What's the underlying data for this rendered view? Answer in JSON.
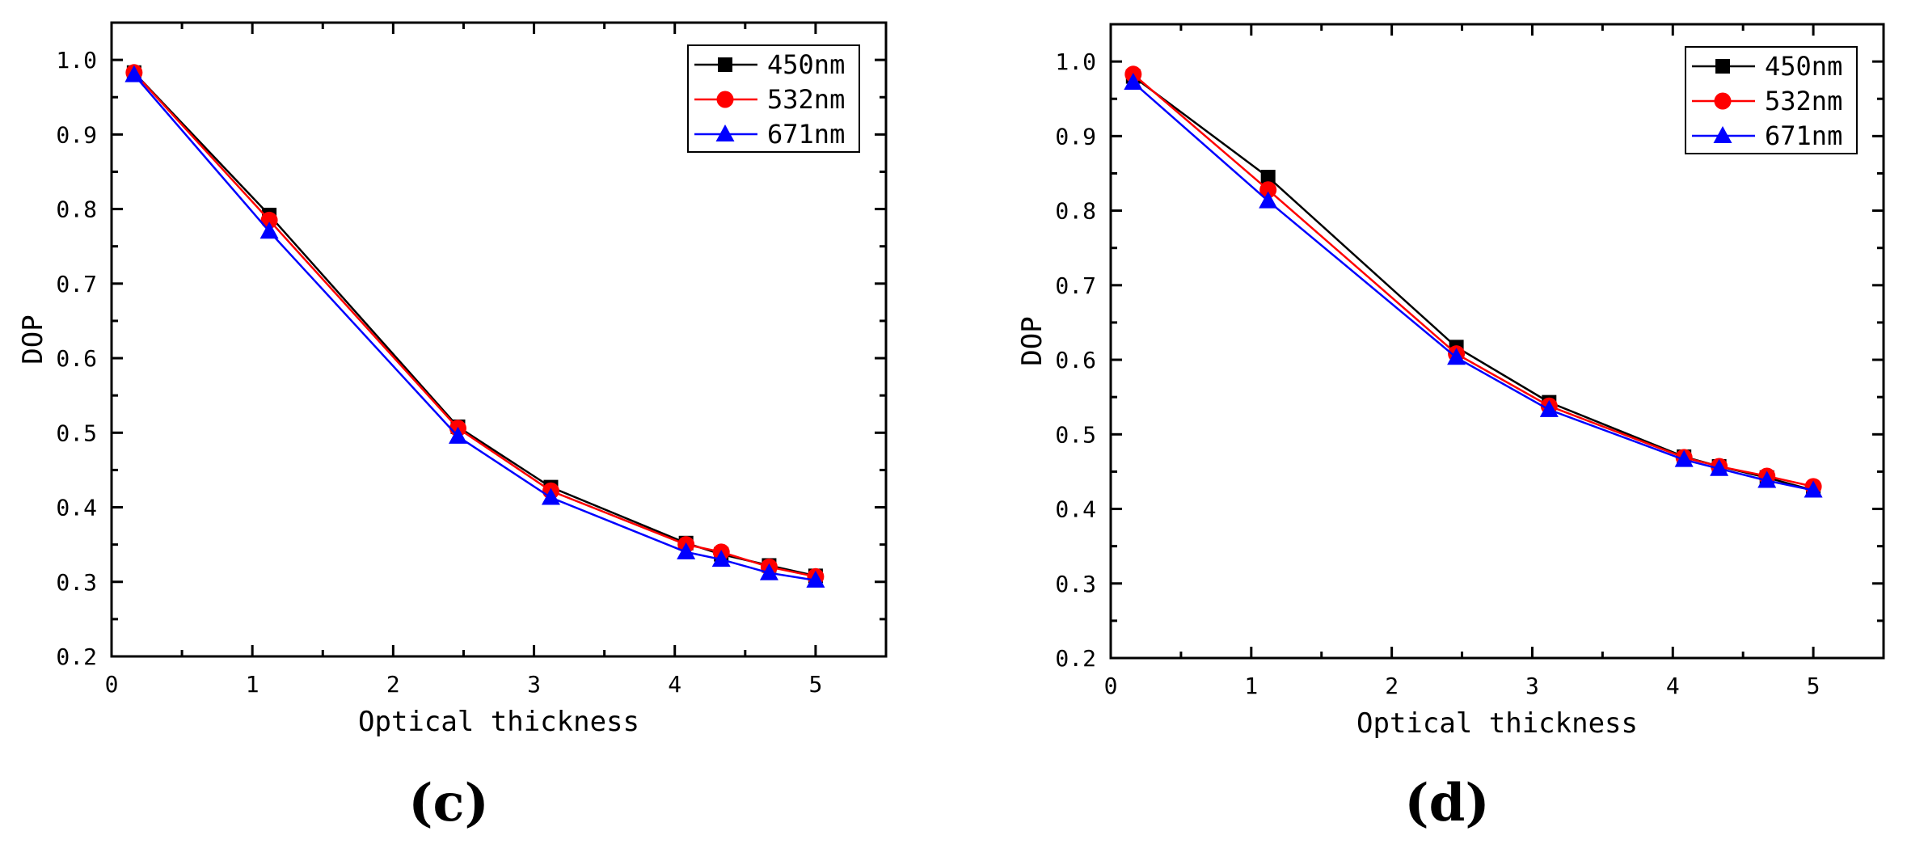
{
  "chart_data": [
    {
      "type": "line",
      "panel_label": "(c)",
      "xlabel": "Optical thickness",
      "ylabel": "DOP",
      "xlim": [
        0,
        5.5
      ],
      "ylim": [
        0.2,
        1.05
      ],
      "xticks": [
        0,
        1,
        2,
        3,
        4,
        5
      ],
      "yticks": [
        0.2,
        0.3,
        0.4,
        0.5,
        0.6,
        0.7,
        0.8,
        0.9,
        1.0
      ],
      "xtick_labels": [
        "0",
        "1",
        "2",
        "3",
        "4",
        "5"
      ],
      "ytick_labels": [
        "0.2",
        "0.3",
        "0.4",
        "0.5",
        "0.6",
        "0.7",
        "0.8",
        "0.9",
        "1.0"
      ],
      "legend_position": "top-right",
      "x": [
        0.16,
        1.12,
        2.46,
        3.12,
        4.08,
        4.33,
        4.67,
        5.0
      ],
      "series": [
        {
          "name": "450nm",
          "color": "#000000",
          "marker": "square",
          "values": [
            0.983,
            0.792,
            0.508,
            0.427,
            0.352,
            0.337,
            0.322,
            0.308
          ]
        },
        {
          "name": "532nm",
          "color": "#ff0000",
          "marker": "circle",
          "values": [
            0.983,
            0.785,
            0.506,
            0.422,
            0.35,
            0.34,
            0.32,
            0.307
          ]
        },
        {
          "name": "671nm",
          "color": "#0000ff",
          "marker": "triangle",
          "values": [
            0.98,
            0.77,
            0.495,
            0.413,
            0.34,
            0.33,
            0.312,
            0.302
          ]
        }
      ]
    },
    {
      "type": "line",
      "panel_label": "(d)",
      "xlabel": "Optical thickness",
      "ylabel": "DOP",
      "xlim": [
        0,
        5.5
      ],
      "ylim": [
        0.2,
        1.05
      ],
      "xticks": [
        0,
        1,
        2,
        3,
        4,
        5
      ],
      "yticks": [
        0.2,
        0.3,
        0.4,
        0.5,
        0.6,
        0.7,
        0.8,
        0.9,
        1.0
      ],
      "xtick_labels": [
        "0",
        "1",
        "2",
        "3",
        "4",
        "5"
      ],
      "ytick_labels": [
        "0.2",
        "0.3",
        "0.4",
        "0.5",
        "0.6",
        "0.7",
        "0.8",
        "0.9",
        "1.0"
      ],
      "legend_position": "top-right",
      "x": [
        0.16,
        1.12,
        2.46,
        3.12,
        4.08,
        4.33,
        4.67,
        5.0
      ],
      "series": [
        {
          "name": "450nm",
          "color": "#000000",
          "marker": "square",
          "values": [
            0.98,
            0.845,
            0.617,
            0.543,
            0.47,
            0.457,
            0.442,
            0.425
          ]
        },
        {
          "name": "532nm",
          "color": "#ff0000",
          "marker": "circle",
          "values": [
            0.983,
            0.828,
            0.608,
            0.538,
            0.469,
            0.457,
            0.444,
            0.43
          ]
        },
        {
          "name": "671nm",
          "color": "#0000ff",
          "marker": "triangle",
          "values": [
            0.972,
            0.813,
            0.603,
            0.533,
            0.466,
            0.454,
            0.438,
            0.425
          ]
        }
      ]
    }
  ]
}
